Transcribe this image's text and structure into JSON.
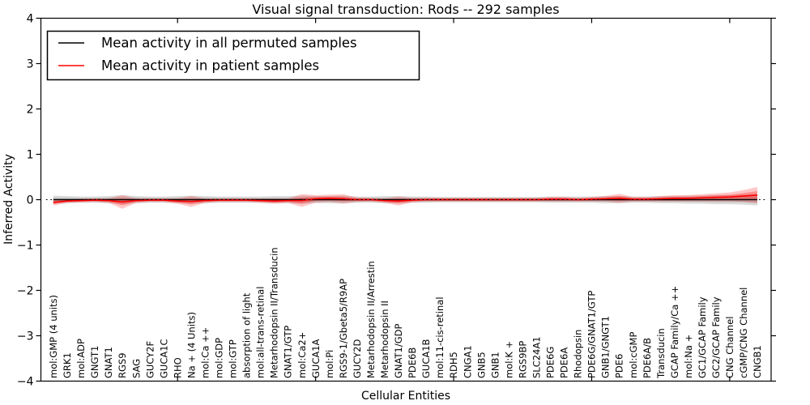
{
  "chart_data": {
    "type": "line",
    "title": "Visual signal transduction: Rods -- 292 samples",
    "xlabel": "Cellular Entities",
    "ylabel": "Inferred Activity",
    "ylim": [
      -4,
      4
    ],
    "yticks": [
      -4,
      -3,
      -2,
      -1,
      0,
      1,
      2,
      3,
      4
    ],
    "x_major_tick_indices": [
      9,
      19,
      29,
      39,
      49
    ],
    "grid": false,
    "legend_position": "upper left",
    "zero_line": {
      "style": "dotted",
      "color": "#000000",
      "y": 0
    },
    "colors": {
      "permuted_line": "#000000",
      "patient_line": "#ff0000",
      "permuted_band": "rgba(0,0,0,0.14)",
      "patient_band": "rgba(255,0,0,0.22)"
    },
    "categories": [
      "mol:GMP (4 units)",
      "GRK1",
      "mol:ADP",
      "GNGT1",
      "GNAT1",
      "RGS9",
      "SAG",
      "GUCY2F",
      "GUCA1C",
      "RHO",
      "Na + (4 Units)",
      "mol:Ca ++",
      "mol:GDP",
      "mol:GTP",
      "absorption of light",
      "mol:all-trans-retinal",
      "Metarhodopsin II/Transducin",
      "GNAT1/GTP",
      "mol:Ca2+",
      "GUCA1A",
      "mol:Pi",
      "RGS9-1/Gbeta5/R9AP",
      "GUCY2D",
      "Metarhodopsin II/Arrestin",
      "Metarhodopsin II",
      "GNAT1/GDP",
      "PDE6B",
      "GUCA1B",
      "mol:11-cis-retinal",
      "RDH5",
      "CNGA1",
      "GNB5",
      "GNB1",
      "mol:K +",
      "RGS9BP",
      "SLC24A1",
      "PDE6G",
      "PDE6A",
      "Rhodopsin",
      "PDE6G/GNAT1/GTP",
      "GNB1/GNGT1",
      "PDE6",
      "mol:cGMP",
      "PDE6A/B",
      "Transducin",
      "GCAP Family/Ca ++",
      "mol:Na +",
      "GC1/GCAP Family",
      "GC2/GCAP Family",
      "CNG Channel",
      "cGMP/CNG Channel",
      "CNGB1"
    ],
    "series": [
      {
        "name": "Mean activity in all permuted samples",
        "color": "#000000",
        "values": [
          0,
          0,
          0,
          0,
          0,
          0,
          0,
          0,
          0,
          0,
          0,
          0,
          0,
          0,
          0,
          0,
          0,
          0,
          0,
          0,
          0,
          0,
          0,
          0,
          0,
          0,
          0,
          0,
          0,
          0,
          0,
          0,
          0,
          0,
          0,
          0,
          0,
          0,
          0,
          0,
          0,
          0,
          0,
          0,
          0,
          0,
          0,
          0,
          0,
          0,
          0,
          0
        ],
        "band_halfwidth": [
          0.09,
          0.08,
          0.07,
          0.07,
          0.08,
          0.1,
          0.08,
          0.07,
          0.07,
          0.08,
          0.09,
          0.08,
          0.07,
          0.07,
          0.07,
          0.07,
          0.08,
          0.08,
          0.09,
          0.08,
          0.08,
          0.09,
          0.07,
          0.07,
          0.08,
          0.08,
          0.07,
          0.07,
          0.06,
          0.06,
          0.06,
          0.06,
          0.06,
          0.06,
          0.06,
          0.06,
          0.07,
          0.07,
          0.07,
          0.07,
          0.08,
          0.08,
          0.07,
          0.07,
          0.08,
          0.08,
          0.09,
          0.09,
          0.1,
          0.1,
          0.11,
          0.13
        ]
      },
      {
        "name": "Mean activity in patient samples",
        "color": "#ff0000",
        "values": [
          -0.06,
          -0.03,
          -0.02,
          -0.01,
          -0.02,
          -0.05,
          -0.02,
          -0.01,
          -0.01,
          -0.03,
          -0.04,
          -0.02,
          -0.01,
          -0.01,
          -0.01,
          -0.02,
          -0.03,
          -0.02,
          -0.02,
          0.02,
          0.03,
          0.02,
          0,
          0,
          -0.02,
          -0.03,
          -0.01,
          0,
          0,
          0,
          0,
          0,
          0,
          0,
          0,
          0,
          0.01,
          0.01,
          0,
          0.01,
          0.02,
          0.03,
          0.01,
          0.01,
          0.02,
          0.03,
          0.03,
          0.04,
          0.05,
          0.06,
          0.08,
          0.1
        ],
        "band_halfwidth": [
          0.07,
          0.04,
          0.04,
          0.04,
          0.05,
          0.15,
          0.05,
          0.04,
          0.04,
          0.06,
          0.12,
          0.05,
          0.04,
          0.04,
          0.04,
          0.05,
          0.06,
          0.05,
          0.14,
          0.08,
          0.08,
          0.1,
          0.05,
          0.04,
          0.05,
          0.1,
          0.05,
          0.04,
          0.04,
          0.04,
          0.04,
          0.04,
          0.04,
          0.04,
          0.04,
          0.04,
          0.05,
          0.05,
          0.04,
          0.05,
          0.06,
          0.1,
          0.05,
          0.05,
          0.06,
          0.07,
          0.07,
          0.08,
          0.09,
          0.1,
          0.13,
          0.18
        ]
      }
    ]
  }
}
